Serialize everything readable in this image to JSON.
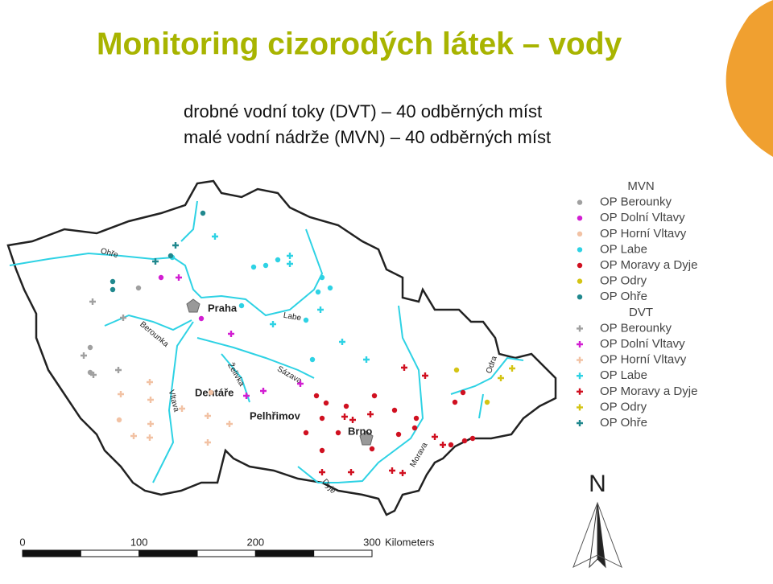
{
  "header": {
    "title": "Monitoring cizorodých látek – vody",
    "lines": [
      "drobné vodní toky (DVT) – 40 odběrných míst",
      "malé vodní nádrže (MVN) – 40 odběrných míst"
    ]
  },
  "legend": {
    "groups": [
      {
        "title": "MVN",
        "marker": "circle",
        "items": [
          {
            "label": "OP Berounky",
            "color": "#a0a0a0"
          },
          {
            "label": "OP Dolní Vltavy",
            "color": "#d21ed2"
          },
          {
            "label": "OP Horní Vltavy",
            "color": "#f2c2a4"
          },
          {
            "label": "OP Labe",
            "color": "#2ed2e4"
          },
          {
            "label": "OP Moravy a Dyje",
            "color": "#d01020"
          },
          {
            "label": "OP Odry",
            "color": "#d4c414"
          },
          {
            "label": "OP Ohře",
            "color": "#20888e"
          }
        ]
      },
      {
        "title": "DVT",
        "marker": "plus",
        "items": [
          {
            "label": "OP Berounky",
            "color": "#a0a0a0"
          },
          {
            "label": "OP Dolní Vltavy",
            "color": "#d21ed2"
          },
          {
            "label": "OP Horní Vltavy",
            "color": "#f2c2a4"
          },
          {
            "label": "OP Labe",
            "color": "#2ed2e4"
          },
          {
            "label": "OP Moravy a Dyje",
            "color": "#d01020"
          },
          {
            "label": "OP Odry",
            "color": "#d4c414"
          },
          {
            "label": "OP Ohře",
            "color": "#20888e"
          }
        ]
      }
    ]
  },
  "map": {
    "labels": [
      "Ohře",
      "Berounka",
      "Praha",
      "Labe",
      "Vltava",
      "Želivka",
      "Sázava",
      "Dehtáře",
      "Pelhřimov",
      "Brno",
      "Odra",
      "Dyje",
      "Morava"
    ]
  },
  "scale": {
    "ticks": [
      0,
      100,
      200,
      300
    ],
    "unit": "Kilometers"
  },
  "north": "N"
}
